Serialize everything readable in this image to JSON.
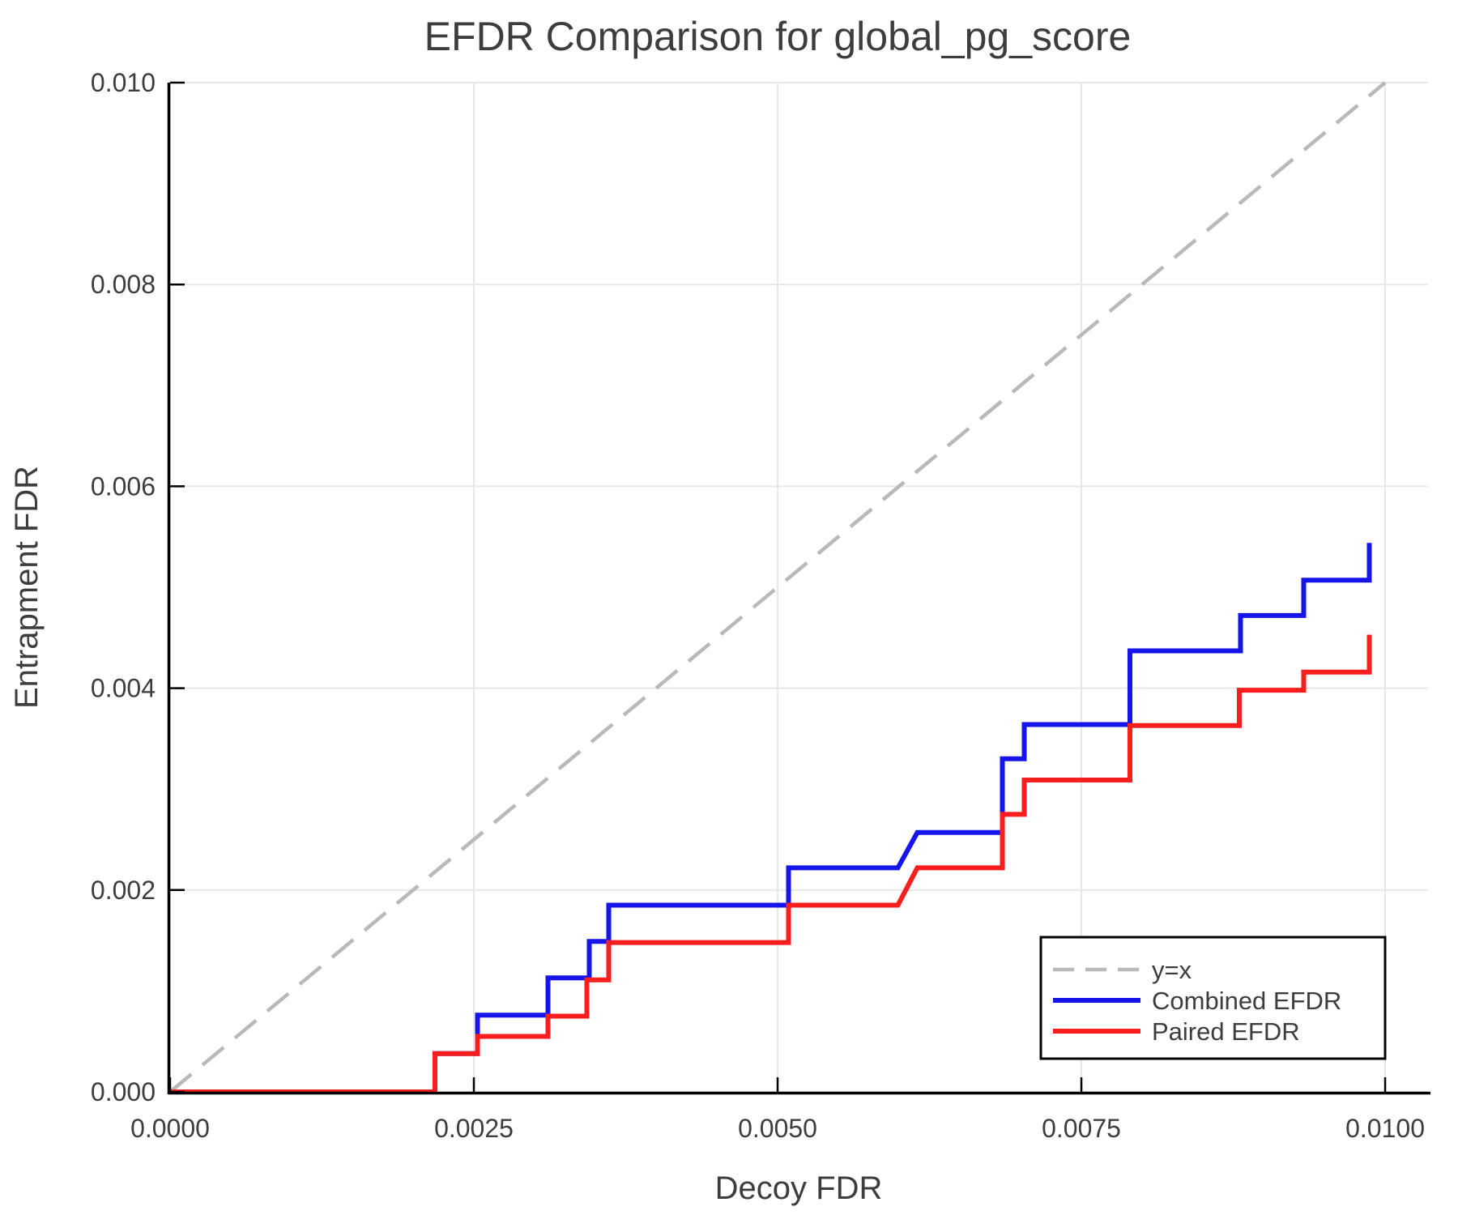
{
  "title": "EFDR Comparison for global_pg_score",
  "chart_data": {
    "type": "line",
    "title": "EFDR Comparison for global_pg_score",
    "xlabel": "Decoy FDR",
    "ylabel": "Entrapment FDR",
    "xlim": [
      0,
      0.010353
    ],
    "ylim": [
      0,
      0.01
    ],
    "grid": true,
    "legend_position": "lower right",
    "x_ticks": {
      "values": [
        0,
        0.0025,
        0.005,
        0.0075,
        0.01
      ],
      "labels": [
        "0.0000",
        "0.0025",
        "0.0050",
        "0.0075",
        "0.0100"
      ]
    },
    "y_ticks": {
      "values": [
        0,
        0.002,
        0.004,
        0.006,
        0.008,
        0.01
      ],
      "labels": [
        "0.000",
        "0.002",
        "0.004",
        "0.006",
        "0.008",
        "0.010"
      ]
    },
    "series": [
      {
        "name": "y=x",
        "color": "#b9b9b9",
        "dash": "34 18",
        "width": 4.5,
        "points": [
          [
            0,
            0
          ],
          [
            0.01,
            0.01
          ]
        ]
      },
      {
        "name": "Combined EFDR",
        "color": "#1414eb",
        "dash": null,
        "width": 6,
        "points": [
          [
            0,
            0
          ],
          [
            0.00218,
            0
          ],
          [
            0.00218,
            0.00038
          ],
          [
            0.00253,
            0.00038
          ],
          [
            0.00253,
            0.00076
          ],
          [
            0.00311,
            0.00076
          ],
          [
            0.00311,
            0.00113
          ],
          [
            0.00345,
            0.00113
          ],
          [
            0.00345,
            0.00149
          ],
          [
            0.00361,
            0.00149
          ],
          [
            0.00361,
            0.00185
          ],
          [
            0.00509,
            0.00185
          ],
          [
            0.00509,
            0.00222
          ],
          [
            0.00599,
            0.00222
          ],
          [
            0.00615,
            0.00257
          ],
          [
            0.00685,
            0.00257
          ],
          [
            0.00685,
            0.0033
          ],
          [
            0.00703,
            0.0033
          ],
          [
            0.00703,
            0.00364
          ],
          [
            0.0079,
            0.00364
          ],
          [
            0.0079,
            0.00437
          ],
          [
            0.00881,
            0.00437
          ],
          [
            0.00881,
            0.00472
          ],
          [
            0.00933,
            0.00472
          ],
          [
            0.00933,
            0.00507
          ],
          [
            0.00987,
            0.00507
          ],
          [
            0.00987,
            0.00544
          ]
        ]
      },
      {
        "name": "Paired EFDR",
        "color": "#f81e1e",
        "dash": null,
        "width": 6,
        "points": [
          [
            0,
            0
          ],
          [
            0.00218,
            0
          ],
          [
            0.00218,
            0.00038
          ],
          [
            0.00253,
            0.00038
          ],
          [
            0.00253,
            0.00055
          ],
          [
            0.00311,
            0.00055
          ],
          [
            0.00311,
            0.00075
          ],
          [
            0.00343,
            0.00075
          ],
          [
            0.00343,
            0.00111
          ],
          [
            0.00361,
            0.00111
          ],
          [
            0.00361,
            0.00148
          ],
          [
            0.00509,
            0.00148
          ],
          [
            0.00509,
            0.00185
          ],
          [
            0.00599,
            0.00185
          ],
          [
            0.00615,
            0.00222
          ],
          [
            0.00685,
            0.00222
          ],
          [
            0.00685,
            0.00275
          ],
          [
            0.00703,
            0.00275
          ],
          [
            0.00703,
            0.00309
          ],
          [
            0.0079,
            0.00309
          ],
          [
            0.0079,
            0.00363
          ],
          [
            0.0088,
            0.00363
          ],
          [
            0.0088,
            0.00398
          ],
          [
            0.00933,
            0.00398
          ],
          [
            0.00933,
            0.00416
          ],
          [
            0.00987,
            0.00416
          ],
          [
            0.00987,
            0.00453
          ]
        ]
      }
    ],
    "legend": [
      "y=x",
      "Combined EFDR",
      "Paired EFDR"
    ]
  }
}
